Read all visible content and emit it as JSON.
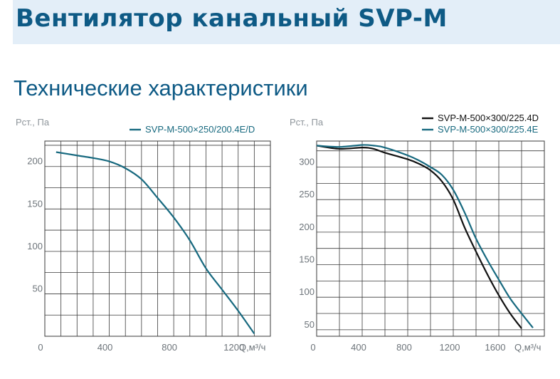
{
  "header": {
    "title": "Вентилятор канальный SVP-M"
  },
  "section": {
    "title": "Технические характеристики"
  },
  "colors": {
    "banner_bg": "#e3eef8",
    "title": "#0e5a85",
    "teal": "#17697f",
    "black": "#111111",
    "grid": "#3a3a3a"
  },
  "chart_data": [
    {
      "type": "line",
      "ylabel": "Pст., Па",
      "xlabel": "Q,м³/ч",
      "xlim": [
        0,
        1400
      ],
      "ylim": [
        0,
        230
      ],
      "xticks": [
        0,
        400,
        800,
        1200
      ],
      "yticks": [
        50,
        100,
        150,
        200
      ],
      "x_tick_labels": [
        "0",
        "400",
        "800",
        "1200"
      ],
      "y_tick_labels": [
        "50",
        "100",
        "150",
        "200"
      ],
      "legend_position": "top-right",
      "series": [
        {
          "name": "SVP-M-500×250/200.4E/D",
          "color": "#17697f",
          "x": [
            70,
            200,
            300,
            400,
            500,
            600,
            700,
            800,
            900,
            1000,
            1100,
            1200,
            1300
          ],
          "y": [
            217,
            213,
            210,
            206,
            198,
            185,
            163,
            140,
            113,
            80,
            55,
            30,
            3
          ]
        }
      ]
    },
    {
      "type": "line",
      "ylabel": "Pст., Па",
      "xlabel": "Q,м³/ч",
      "xlim": [
        0,
        2000
      ],
      "ylim": [
        40,
        340
      ],
      "xticks": [
        0,
        400,
        800,
        1200,
        1600
      ],
      "yticks": [
        50,
        100,
        150,
        200,
        250,
        300
      ],
      "x_tick_labels": [
        "0",
        "400",
        "800",
        "1200",
        "1600"
      ],
      "y_tick_labels": [
        "50",
        "100",
        "150",
        "200",
        "250",
        "300"
      ],
      "legend_position": "top-right",
      "series": [
        {
          "name": "SVP-M-500×300/225.4D",
          "color": "#111111",
          "x": [
            0,
            200,
            400,
            500,
            600,
            800,
            900,
            1000,
            1100,
            1200,
            1300,
            1400,
            1500,
            1600,
            1700,
            1800
          ],
          "y": [
            333,
            328,
            330,
            328,
            322,
            312,
            305,
            295,
            278,
            250,
            207,
            170,
            135,
            103,
            75,
            52
          ]
        },
        {
          "name": "SVP-M-500×300/225.4E",
          "color": "#17697f",
          "x": [
            0,
            200,
            400,
            500,
            600,
            800,
            900,
            1000,
            1100,
            1200,
            1300,
            1400,
            1500,
            1600,
            1700,
            1800,
            1900
          ],
          "y": [
            333,
            331,
            334,
            333,
            330,
            318,
            310,
            300,
            288,
            265,
            230,
            190,
            157,
            127,
            98,
            75,
            53
          ]
        }
      ]
    }
  ]
}
